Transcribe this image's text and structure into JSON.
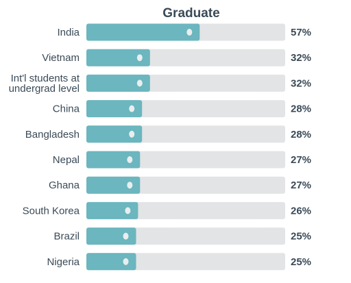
{
  "chart_data": {
    "type": "bar",
    "orientation": "horizontal",
    "title": "Graduate",
    "categories": [
      "India",
      "Vietnam",
      "Int'l students at undergrad level",
      "China",
      "Bangladesh",
      "Nepal",
      "Ghana",
      "South Korea",
      "Brazil",
      "Nigeria"
    ],
    "category_lines": [
      [
        "India"
      ],
      [
        "Vietnam"
      ],
      [
        "Int'l students at",
        "undergrad level"
      ],
      [
        "China"
      ],
      [
        "Bangladesh"
      ],
      [
        "Nepal"
      ],
      [
        "Ghana"
      ],
      [
        "South Korea"
      ],
      [
        "Brazil"
      ],
      [
        "Nigeria"
      ]
    ],
    "values": [
      57,
      32,
      32,
      28,
      28,
      27,
      27,
      26,
      25,
      25
    ],
    "value_labels": [
      "57%",
      "32%",
      "32%",
      "28%",
      "28%",
      "27%",
      "27%",
      "26%",
      "25%",
      "25%"
    ],
    "xlim": [
      0,
      100
    ],
    "grid": false,
    "colors": {
      "bar": "#6bb6bf",
      "track": "#e3e4e6",
      "marker": "#e9eeee",
      "text": "#3a4a57"
    }
  }
}
